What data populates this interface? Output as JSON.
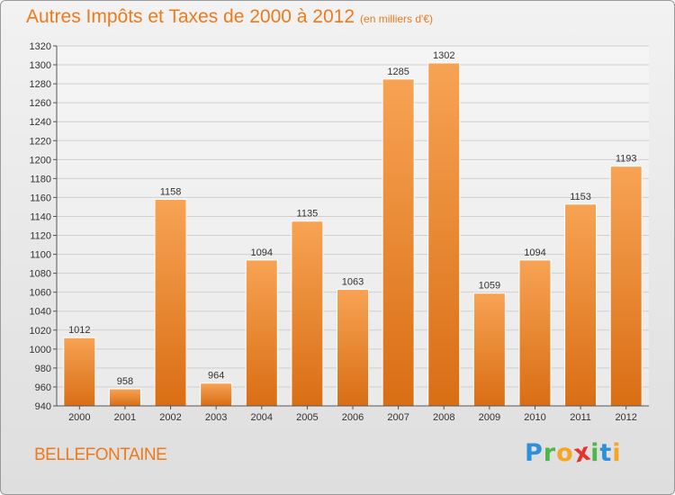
{
  "header": {
    "title": "Autres Impôts et Taxes de 2000 à 2012",
    "unit": "(en milliers d'€)"
  },
  "footer": {
    "commune": "BELLEFONTAINE",
    "logo": {
      "letters": [
        "P",
        "r",
        "o",
        "x",
        "i",
        "t",
        "i"
      ],
      "colors": [
        "#2f8fd8",
        "#4db848",
        "#f5a623",
        "#e8322e",
        "#4db848",
        "#2f8fd8",
        "#f5a623"
      ]
    }
  },
  "colors": {
    "bar_top": "#f7a354",
    "bar_bottom": "#d96e14",
    "accent": "#ee7a1b",
    "grid": "#d0d0d0"
  },
  "chart_data": {
    "type": "bar",
    "title": "Autres Impôts et Taxes de 2000 à 2012",
    "subtitle": "(en milliers d'€)",
    "xlabel": "",
    "ylabel": "",
    "categories": [
      "2000",
      "2001",
      "2002",
      "2003",
      "2004",
      "2005",
      "2006",
      "2007",
      "2008",
      "2009",
      "2010",
      "2011",
      "2012"
    ],
    "values": [
      1012,
      958,
      1158,
      964,
      1094,
      1135,
      1063,
      1285,
      1302,
      1059,
      1094,
      1153,
      1193
    ],
    "ylim": [
      940,
      1320
    ],
    "yticks": [
      940,
      960,
      980,
      1000,
      1020,
      1040,
      1060,
      1080,
      1100,
      1120,
      1140,
      1160,
      1180,
      1200,
      1220,
      1240,
      1260,
      1280,
      1300,
      1320
    ],
    "grid": true,
    "data_labels": true
  }
}
